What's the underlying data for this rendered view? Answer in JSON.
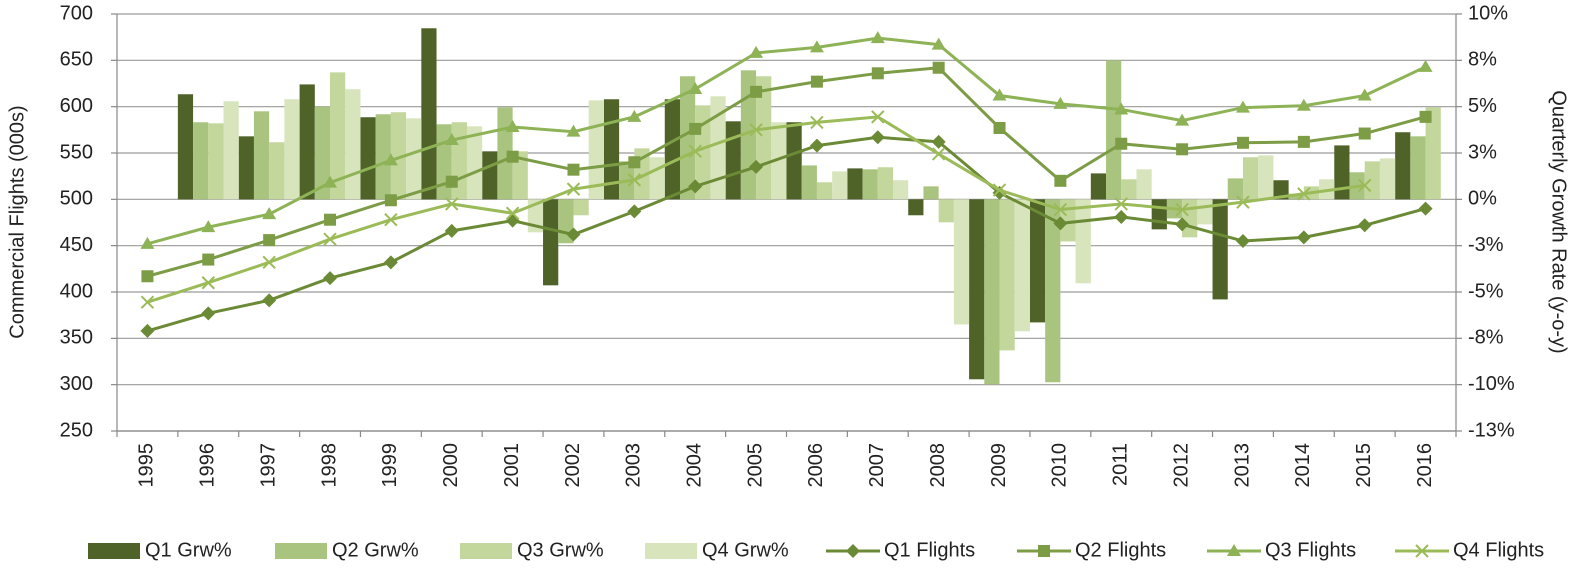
{
  "chart_data": {
    "type": "combo",
    "categories": [
      "1995",
      "1996",
      "1997",
      "1998",
      "1999",
      "2000",
      "2001",
      "2002",
      "2003",
      "2004",
      "2005",
      "2006",
      "2007",
      "2008",
      "2009",
      "2010",
      "2011",
      "2012",
      "2013",
      "2014",
      "2015",
      "2016"
    ],
    "ylabel": "Commercial Flights (000s)",
    "y2label": "Quarterly Growth Rate (y-o-y)",
    "ylim": [
      250,
      700
    ],
    "yticks": [
      250,
      300,
      350,
      400,
      450,
      500,
      550,
      600,
      650,
      700
    ],
    "y2lim": [
      -12.5,
      10
    ],
    "y2ticks": [
      {
        "value": -12.5,
        "label": "-13%"
      },
      {
        "value": -10,
        "label": "-10%"
      },
      {
        "value": -7.5,
        "label": "-8%"
      },
      {
        "value": -5,
        "label": "-5%"
      },
      {
        "value": -2.5,
        "label": "-3%"
      },
      {
        "value": 0,
        "label": "0%"
      },
      {
        "value": 2.5,
        "label": "3%"
      },
      {
        "value": 5,
        "label": "5%"
      },
      {
        "value": 7.5,
        "label": "8%"
      },
      {
        "value": 10,
        "label": "10%"
      }
    ],
    "grid": true,
    "legend": "bottom",
    "series": [
      {
        "name": "Q1 Grw%",
        "type": "bar",
        "axis": "y2",
        "color": "#4f6228",
        "values": [
          null,
          5.67,
          3.4,
          6.2,
          4.43,
          9.23,
          2.59,
          -4.64,
          5.4,
          5.4,
          4.21,
          4.16,
          1.67,
          -0.86,
          -9.71,
          -6.64,
          1.4,
          -1.62,
          -5.4,
          1.03,
          2.91,
          3.62
        ]
      },
      {
        "name": "Q2 Grw%",
        "type": "bar",
        "axis": "y2",
        "color": "#a9c47f",
        "values": [
          null,
          4.16,
          4.75,
          5.0,
          4.59,
          4.05,
          4.96,
          -2.37,
          2.05,
          6.64,
          6.96,
          1.83,
          1.62,
          0.7,
          -9.98,
          -9.87,
          7.5,
          -1.03,
          1.13,
          0.3,
          1.46,
          3.4
        ]
      },
      {
        "name": "Q3 Grw%",
        "type": "bar",
        "axis": "y2",
        "color": "#c3d69b",
        "values": [
          null,
          4.1,
          3.08,
          6.85,
          4.7,
          4.16,
          2.59,
          -0.86,
          2.75,
          5.07,
          6.64,
          0.92,
          1.73,
          -1.24,
          -8.15,
          -2.27,
          1.08,
          -2.05,
          2.27,
          0.7,
          2.05,
          4.96
        ]
      },
      {
        "name": "Q4 Grw%",
        "type": "bar",
        "axis": "y2",
        "color": "#d7e4bc",
        "values": [
          null,
          5.29,
          5.4,
          5.94,
          4.37,
          3.94,
          -1.78,
          5.34,
          2.27,
          5.56,
          4.16,
          1.51,
          1.03,
          -6.75,
          -7.12,
          -4.53,
          1.62,
          -1.35,
          2.37,
          1.08,
          2.21,
          null
        ]
      },
      {
        "name": "Q1 Flights",
        "type": "line",
        "marker": "diamond",
        "color": "#6b8a35",
        "values": [
          358,
          377,
          391,
          415,
          432,
          466,
          477,
          462,
          487,
          514,
          535,
          558,
          567,
          562,
          507,
          474,
          481,
          473,
          455,
          459,
          472,
          490
        ]
      },
      {
        "name": "Q2 Flights",
        "type": "line",
        "marker": "square",
        "color": "#7c9c45",
        "values": [
          417,
          435,
          456,
          478,
          499,
          519,
          546,
          532,
          540,
          576,
          616,
          627,
          636,
          642,
          577,
          520,
          560,
          554,
          561,
          562,
          571,
          589
        ]
      },
      {
        "name": "Q3 Flights",
        "type": "line",
        "marker": "triangle",
        "color": "#8db356",
        "values": [
          452,
          470,
          484,
          518,
          542,
          564,
          578,
          573,
          589,
          619,
          658,
          664,
          674,
          667,
          612,
          603,
          597,
          585,
          599,
          601,
          612,
          643
        ]
      },
      {
        "name": "Q4 Flights",
        "type": "line",
        "marker": "x",
        "color": "#9bbb59",
        "values": [
          389,
          410,
          432,
          457,
          478,
          495,
          485,
          511,
          521,
          552,
          575,
          583,
          589,
          549,
          510,
          489,
          495,
          489,
          497,
          506,
          515,
          null
        ]
      }
    ]
  }
}
